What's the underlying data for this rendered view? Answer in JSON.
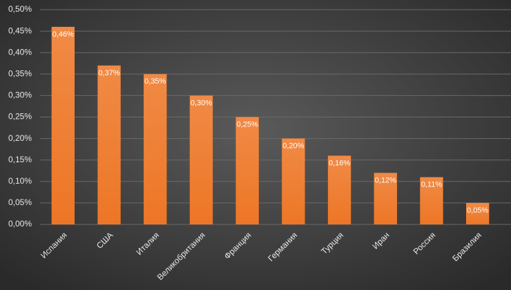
{
  "chart_data": {
    "type": "bar",
    "categories": [
      "Испания",
      "США",
      "Италия",
      "Великобритания",
      "Франция",
      "Германия",
      "Турция",
      "Иран",
      "Россия",
      "Бразилия"
    ],
    "values": [
      0.46,
      0.37,
      0.35,
      0.3,
      0.25,
      0.2,
      0.16,
      0.12,
      0.11,
      0.05
    ],
    "value_labels": [
      "0,46%",
      "0,37%",
      "0,35%",
      "0,30%",
      "0,25%",
      "0,20%",
      "0,16%",
      "0,12%",
      "0,11%",
      "0,05%"
    ],
    "color": "#ed7d31",
    "ylim": [
      0,
      0.5
    ],
    "yticks": [
      {
        "value": 0,
        "label": "0,00%"
      },
      {
        "value": 0.05,
        "label": "0,05%"
      },
      {
        "value": 0.1,
        "label": "0,10%"
      },
      {
        "value": 0.15,
        "label": "0,15%"
      },
      {
        "value": 0.2,
        "label": "0,20%"
      },
      {
        "value": 0.25,
        "label": "0,25%"
      },
      {
        "value": 0.3,
        "label": "0,30%"
      },
      {
        "value": 0.35,
        "label": "0,35%"
      },
      {
        "value": 0.4,
        "label": "0,40%"
      },
      {
        "value": 0.45,
        "label": "0,45%"
      },
      {
        "value": 0.5,
        "label": "0,50%"
      }
    ],
    "grid": true
  }
}
